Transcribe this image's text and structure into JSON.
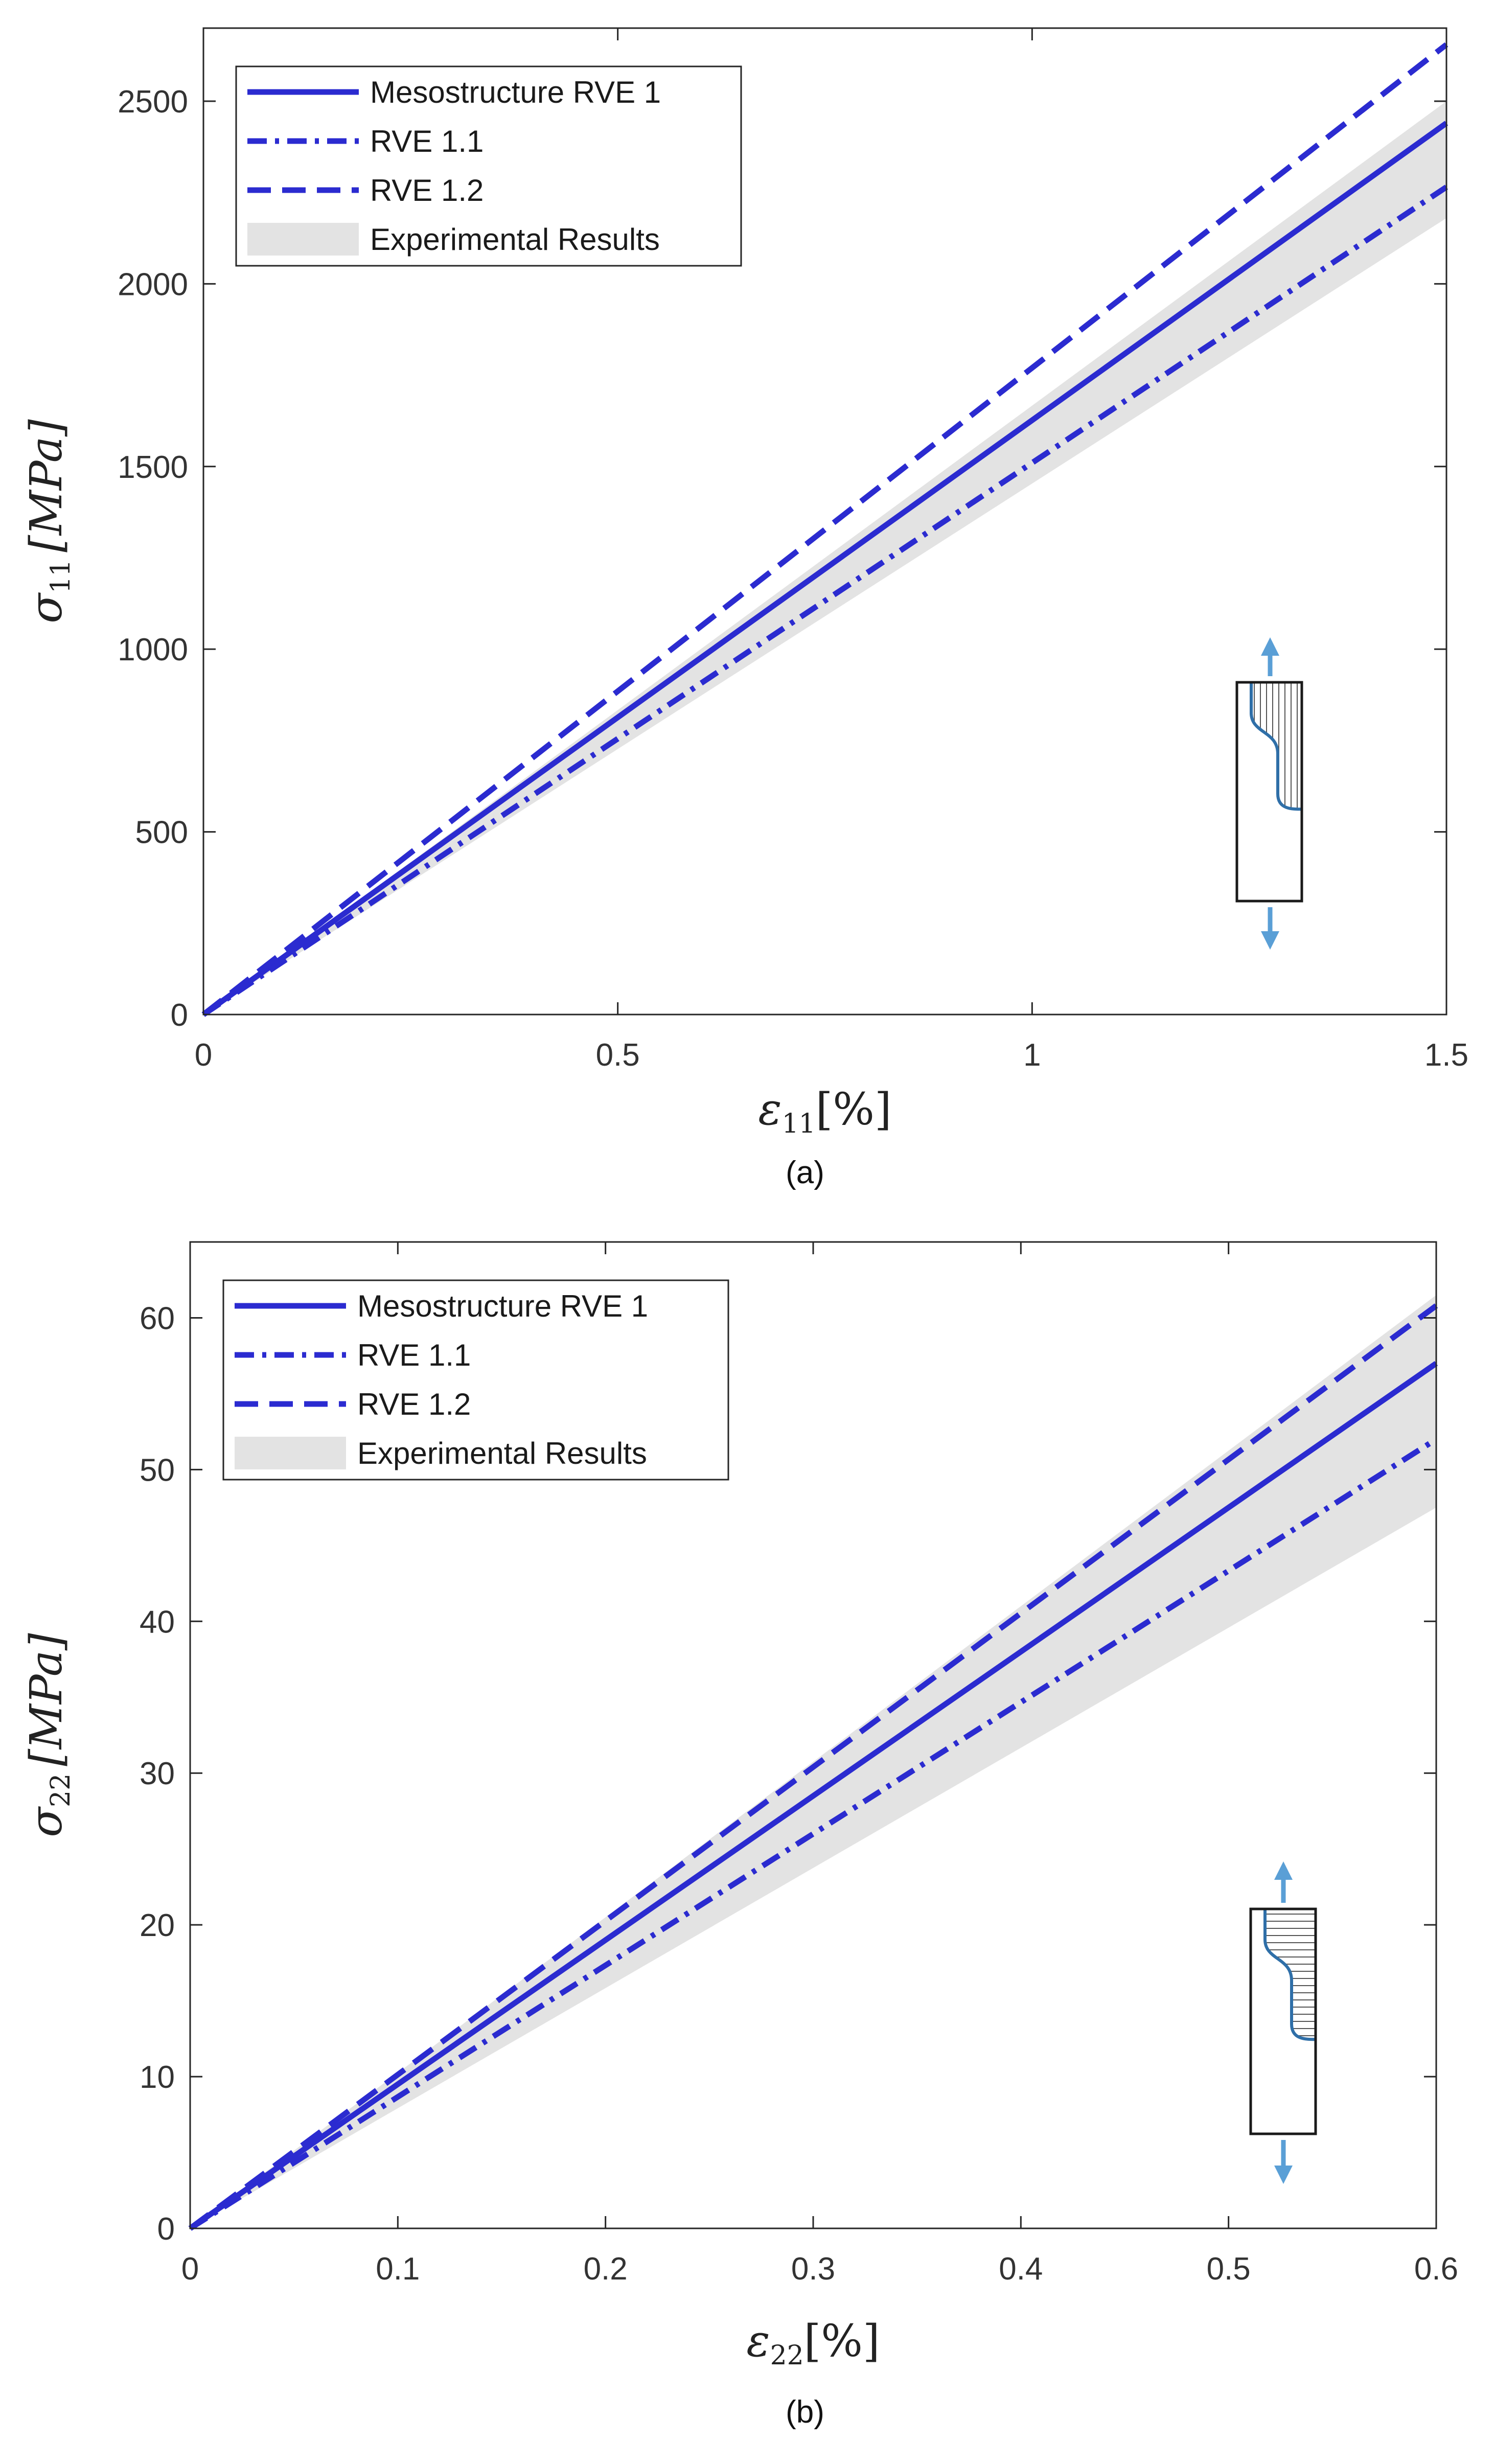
{
  "chart_data": [
    {
      "type": "line",
      "panel_label": "(a)",
      "xlabel_symbol": "ε",
      "xlabel_sub": "11",
      "xlabel_unit": "[%]",
      "ylabel_symbol": "σ",
      "ylabel_sub": "11",
      "ylabel_unit": "[MPa]",
      "xlim": [
        0,
        1.5
      ],
      "ylim": [
        0,
        2700
      ],
      "xticks": [
        0,
        0.5,
        1,
        1.5
      ],
      "xtick_labels": [
        "0",
        "0.5",
        "1",
        "1.5"
      ],
      "yticks": [
        0,
        500,
        1000,
        1500,
        2000,
        2500
      ],
      "ytick_labels": [
        "0",
        "500",
        "1000",
        "1500",
        "2000",
        "2500"
      ],
      "legend_position": "top-left",
      "series": [
        {
          "name": "Mesostructure RVE 1",
          "style": "solid",
          "color": "#2b2bd0",
          "x": [
            0,
            1.5
          ],
          "y": [
            0,
            2440
          ]
        },
        {
          "name": "RVE 1.1",
          "style": "dashdot",
          "color": "#2b2bd0",
          "x": [
            0,
            1.5
          ],
          "y": [
            0,
            2265
          ]
        },
        {
          "name": "RVE 1.2",
          "style": "dashed",
          "color": "#2b2bd0",
          "x": [
            0,
            1.5
          ],
          "y": [
            0,
            2655
          ]
        }
      ],
      "band": {
        "name": "Experimental Results",
        "color": "#e3e3e3",
        "x": [
          0,
          1.5
        ],
        "lower": [
          0,
          2180
        ],
        "upper": [
          0,
          2500
        ]
      }
    },
    {
      "type": "line",
      "panel_label": "(b)",
      "xlabel_symbol": "ε",
      "xlabel_sub": "22",
      "xlabel_unit": "[%]",
      "ylabel_symbol": "σ",
      "ylabel_sub": "22",
      "ylabel_unit": "[MPa]",
      "xlim": [
        0,
        0.6
      ],
      "ylim": [
        0,
        65
      ],
      "xticks": [
        0,
        0.1,
        0.2,
        0.3,
        0.4,
        0.5,
        0.6
      ],
      "xtick_labels": [
        "0",
        "0.1",
        "0.2",
        "0.3",
        "0.4",
        "0.5",
        "0.6"
      ],
      "yticks": [
        0,
        10,
        20,
        30,
        40,
        50,
        60
      ],
      "ytick_labels": [
        "0",
        "10",
        "20",
        "30",
        "40",
        "50",
        "60"
      ],
      "legend_position": "top-left",
      "series": [
        {
          "name": "Mesostructure RVE 1",
          "style": "solid",
          "color": "#2b2bd0",
          "x": [
            0,
            0.6
          ],
          "y": [
            0,
            57
          ]
        },
        {
          "name": "RVE 1.1",
          "style": "dashdot",
          "color": "#2b2bd0",
          "x": [
            0,
            0.6
          ],
          "y": [
            0,
            52
          ]
        },
        {
          "name": "RVE 1.2",
          "style": "dashed",
          "color": "#2b2bd0",
          "x": [
            0,
            0.6
          ],
          "y": [
            0,
            60.8
          ]
        }
      ],
      "band": {
        "name": "Experimental Results",
        "color": "#e3e3e3",
        "x": [
          0,
          0.6
        ],
        "lower": [
          0,
          47.5
        ],
        "upper": [
          0,
          61.5
        ]
      }
    }
  ]
}
